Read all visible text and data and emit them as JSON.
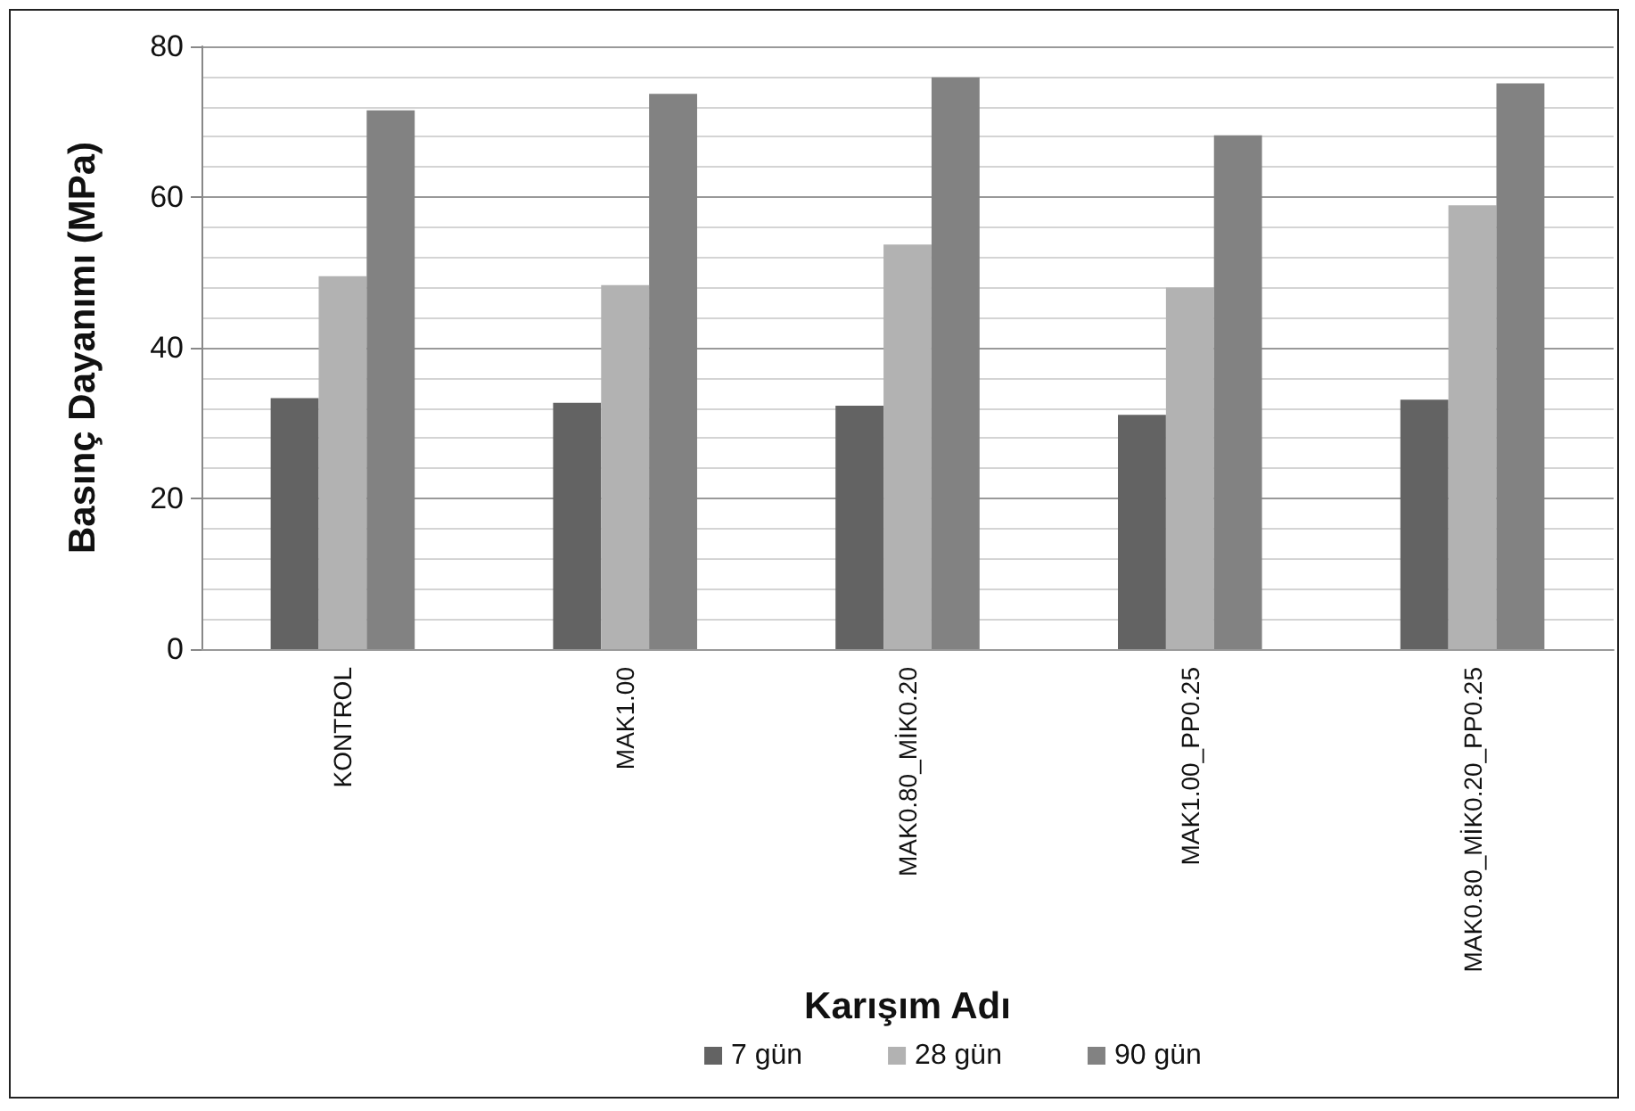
{
  "chart_data": {
    "type": "bar",
    "xlabel": "Karışım Adı",
    "ylabel": "Basınç Dayanımı (MPa)",
    "categories": [
      "KONTROL",
      "MAK1.00",
      "MAK0.80_MİK0.20",
      "MAK1.00_PP0.25",
      "MAK0.80_MİK0.20_PP0.25"
    ],
    "series": [
      {
        "name": "7 gün",
        "color": "#636363",
        "values": [
          33.3,
          32.7,
          32.3,
          31.1,
          33.1
        ]
      },
      {
        "name": "28 gün",
        "color": "#b2b2b2",
        "values": [
          49.5,
          48.3,
          53.7,
          48.0,
          58.9
        ]
      },
      {
        "name": "90 gün",
        "color": "#828282",
        "values": [
          71.5,
          73.7,
          75.9,
          68.2,
          75.1
        ]
      }
    ],
    "ylim": [
      0,
      80
    ],
    "yticks": [
      0,
      20,
      40,
      60,
      80
    ],
    "grid": "y",
    "legend": "bottom"
  }
}
